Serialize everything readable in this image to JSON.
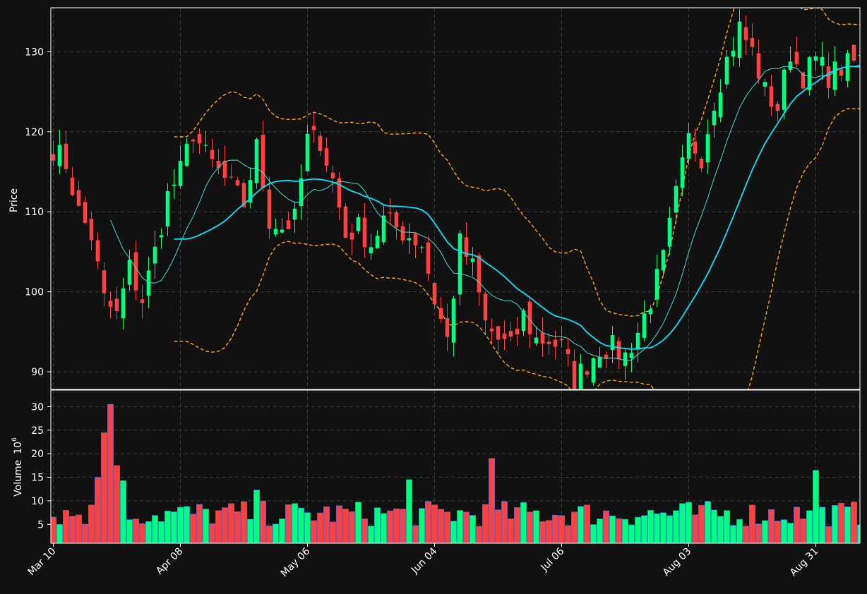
{
  "theme": {
    "background": "#111111",
    "up_color": "#00ff80",
    "down_color": "#ff4040",
    "grid_color": "#3a3a3a",
    "mav_short_color": "#40e0d0",
    "mav_long_color": "#00e5ff",
    "band_color": "#ffa500",
    "text_color": "#ffffff"
  },
  "chart_data": {
    "type": "candlestick",
    "title": "",
    "price_panel": {
      "ylabel": "Price",
      "ylim": [
        87.8,
        135.5
      ],
      "yticks": [
        90,
        100,
        110,
        120,
        130
      ],
      "grid": true
    },
    "volume_panel": {
      "ylabel": "Volume",
      "ylabel_exponent": "10",
      "ylabel_power": "6",
      "ylim": [
        1,
        33.5
      ],
      "yticks": [
        5,
        10,
        15,
        20,
        25,
        30
      ],
      "grid": true
    },
    "x_axis": {
      "day_count": 130,
      "tick_labels": [
        "Mar 10",
        "Apr 08",
        "May 06",
        "Jun 04",
        "Jul 06",
        "Aug 03",
        "Aug 31"
      ],
      "tick_indices": [
        0,
        20,
        40,
        60,
        80,
        100,
        120
      ]
    },
    "ohlc_anchors": [
      [
        0,
        118
      ],
      [
        2,
        116
      ],
      [
        4,
        110
      ],
      [
        6,
        107
      ],
      [
        8,
        99
      ],
      [
        10,
        97
      ],
      [
        12,
        103
      ],
      [
        14,
        99
      ],
      [
        16,
        105
      ],
      [
        18,
        112
      ],
      [
        20,
        115
      ],
      [
        22,
        120
      ],
      [
        24,
        117
      ],
      [
        26,
        115
      ],
      [
        28,
        113
      ],
      [
        30,
        111
      ],
      [
        32,
        118
      ],
      [
        34,
        109
      ],
      [
        36,
        108
      ],
      [
        38,
        109
      ],
      [
        40,
        119
      ],
      [
        42,
        119
      ],
      [
        44,
        114
      ],
      [
        46,
        107
      ],
      [
        48,
        108
      ],
      [
        50,
        106
      ],
      [
        52,
        109
      ],
      [
        54,
        108
      ],
      [
        56,
        107
      ],
      [
        58,
        106
      ],
      [
        60,
        99
      ],
      [
        62,
        94
      ],
      [
        64,
        106
      ],
      [
        66,
        103
      ],
      [
        68,
        96
      ],
      [
        70,
        94
      ],
      [
        72,
        93
      ],
      [
        74,
        97
      ],
      [
        76,
        94
      ],
      [
        78,
        94
      ],
      [
        80,
        93
      ],
      [
        82,
        89
      ],
      [
        84,
        91
      ],
      [
        86,
        93
      ],
      [
        88,
        93
      ],
      [
        90,
        92
      ],
      [
        92,
        95
      ],
      [
        94,
        99
      ],
      [
        96,
        104
      ],
      [
        98,
        112
      ],
      [
        100,
        119
      ],
      [
        102,
        117
      ],
      [
        104,
        124
      ],
      [
        106,
        129
      ],
      [
        108,
        133
      ],
      [
        110,
        130
      ],
      [
        112,
        125
      ],
      [
        114,
        123
      ],
      [
        116,
        130
      ],
      [
        118,
        127
      ],
      [
        120,
        129
      ],
      [
        122,
        127
      ],
      [
        124,
        128
      ],
      [
        127,
        129
      ],
      [
        129,
        129
      ]
    ],
    "volume_spikes": [
      [
        7,
        15
      ],
      [
        8,
        24.5
      ],
      [
        9,
        30.5
      ],
      [
        10,
        17.5
      ],
      [
        11,
        14.3
      ],
      [
        32,
        12.3
      ],
      [
        56,
        14.5
      ],
      [
        69,
        19
      ],
      [
        120,
        16.5
      ]
    ],
    "moving_averages": [
      {
        "period": 10,
        "style": "thin"
      },
      {
        "period": 20,
        "style": "thick"
      }
    ],
    "bands": {
      "period": 20,
      "std": 2,
      "style": "dashed"
    }
  }
}
